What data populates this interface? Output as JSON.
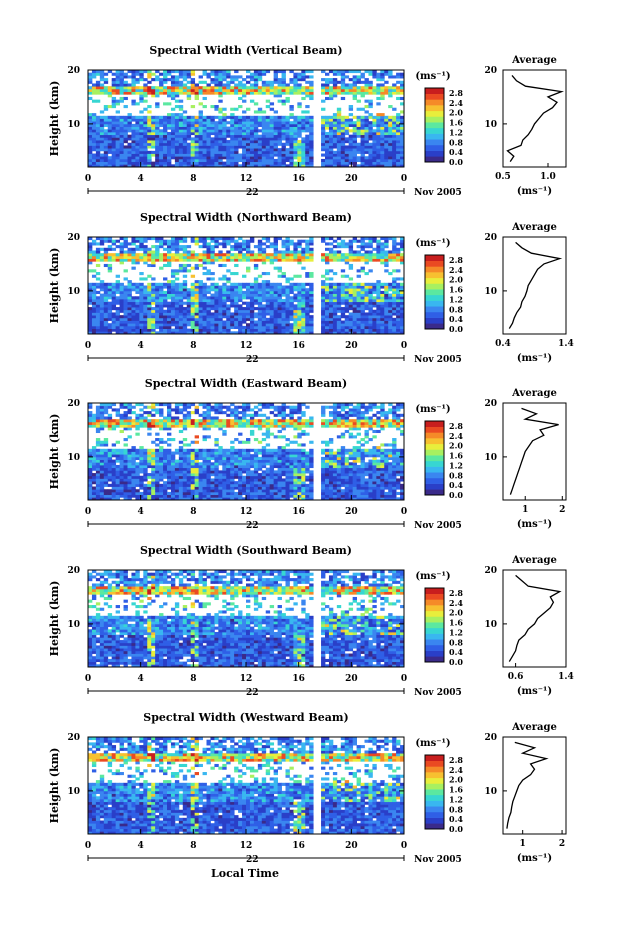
{
  "colors": {
    "scale": [
      "#3a2a8a",
      "#2a3fc8",
      "#2f5fe6",
      "#3a86f0",
      "#39b7f0",
      "#37d6d2",
      "#5be8a0",
      "#a8f060",
      "#e8ee3c",
      "#f7c030",
      "#f58a28",
      "#ea4a22",
      "#c81e1e"
    ],
    "background": "#ffffff",
    "axis": "#000000"
  },
  "shared": {
    "unit_label": "(ms⁻¹)",
    "avg_unit_label": "(ms⁻¹)",
    "y_label": "Height (km)",
    "date_label": "22",
    "month_label": "Nov 2005",
    "x_label": "Local Time",
    "avg_title": "Average",
    "colorbar_ticks": [
      "2.8",
      "2.4",
      "2.0",
      "1.6",
      "1.2",
      "0.8",
      "0.4",
      "0.0"
    ],
    "x_ticks": [
      "0",
      "4",
      "8",
      "12",
      "16",
      "20",
      "0"
    ],
    "y_ticks": [
      "20",
      "10"
    ],
    "avg_y_ticks": [
      "20",
      "10"
    ]
  },
  "chart_data": [
    {
      "type": "heatmap",
      "title": "Spectral Width (Vertical Beam)",
      "x_range_hours": [
        0,
        24
      ],
      "y_range_km": [
        2,
        20
      ],
      "colorbar_range": [
        0.0,
        3.0
      ],
      "data_gap_hours": [
        17.1,
        17.8
      ],
      "average_profile": {
        "xlim": [
          0.5,
          1.2
        ],
        "x_ticks": [
          "0.5",
          "1.0"
        ],
        "height_km": [
          3,
          4,
          5,
          6,
          7,
          8,
          9,
          10,
          11,
          12,
          13,
          14,
          15,
          16,
          17,
          18,
          19
        ],
        "values": [
          0.58,
          0.62,
          0.55,
          0.7,
          0.72,
          0.78,
          0.82,
          0.85,
          0.9,
          0.95,
          1.05,
          1.1,
          1.0,
          1.15,
          0.75,
          0.65,
          0.6
        ]
      }
    },
    {
      "type": "heatmap",
      "title": "Spectral Width (Northward Beam)",
      "x_range_hours": [
        0,
        24
      ],
      "y_range_km": [
        2,
        20
      ],
      "colorbar_range": [
        0.0,
        3.0
      ],
      "data_gap_hours": [
        17.0,
        17.6
      ],
      "average_profile": {
        "xlim": [
          0.4,
          1.4
        ],
        "x_ticks": [
          "0.4",
          "1.4"
        ],
        "height_km": [
          3,
          4,
          5,
          6,
          7,
          8,
          9,
          10,
          11,
          12,
          13,
          14,
          15,
          16,
          17,
          18,
          19
        ],
        "values": [
          0.5,
          0.55,
          0.58,
          0.62,
          0.68,
          0.7,
          0.75,
          0.78,
          0.8,
          0.85,
          0.9,
          0.95,
          1.05,
          1.3,
          0.85,
          0.7,
          0.6
        ]
      }
    },
    {
      "type": "heatmap",
      "title": "Spectral Width (Eastward Beam)",
      "x_range_hours": [
        0,
        24
      ],
      "y_range_km": [
        2,
        20
      ],
      "colorbar_range": [
        0.0,
        3.0
      ],
      "data_gap_hours": [
        17.0,
        17.6
      ],
      "average_profile": {
        "xlim": [
          0.4,
          2.1
        ],
        "x_ticks": [
          "1",
          "2"
        ],
        "height_km": [
          3,
          4,
          5,
          6,
          7,
          8,
          9,
          10,
          11,
          12,
          13,
          14,
          15,
          16,
          17,
          18,
          19
        ],
        "values": [
          0.6,
          0.65,
          0.7,
          0.75,
          0.8,
          0.85,
          0.9,
          0.95,
          1.0,
          1.1,
          1.2,
          1.5,
          1.4,
          1.9,
          1.0,
          1.3,
          0.9
        ]
      }
    },
    {
      "type": "heatmap",
      "title": "Spectral Width (Southward Beam)",
      "x_range_hours": [
        0,
        24
      ],
      "y_range_km": [
        2,
        20
      ],
      "colorbar_range": [
        0.0,
        3.0
      ],
      "data_gap_hours": [
        17.0,
        17.6
      ],
      "average_profile": {
        "xlim": [
          0.4,
          1.4
        ],
        "x_ticks": [
          "0.6",
          "1.4"
        ],
        "height_km": [
          3,
          4,
          5,
          6,
          7,
          8,
          9,
          10,
          11,
          12,
          13,
          14,
          15,
          16,
          17,
          18,
          19
        ],
        "values": [
          0.5,
          0.55,
          0.6,
          0.62,
          0.65,
          0.75,
          0.8,
          0.9,
          0.95,
          1.05,
          1.15,
          1.2,
          1.15,
          1.3,
          0.8,
          0.7,
          0.6
        ]
      }
    },
    {
      "type": "heatmap",
      "title": "Spectral Width (Westward Beam)",
      "x_range_hours": [
        0,
        24
      ],
      "y_range_km": [
        2,
        20
      ],
      "colorbar_range": [
        0.0,
        3.0
      ],
      "data_gap_hours": [
        17.0,
        17.6
      ],
      "average_profile": {
        "xlim": [
          0.5,
          2.1
        ],
        "x_ticks": [
          "1",
          "2"
        ],
        "height_km": [
          3,
          4,
          5,
          6,
          7,
          8,
          9,
          10,
          11,
          12,
          13,
          14,
          15,
          16,
          17,
          18,
          19
        ],
        "values": [
          0.6,
          0.62,
          0.65,
          0.7,
          0.72,
          0.75,
          0.8,
          0.85,
          0.9,
          1.0,
          1.2,
          1.3,
          1.2,
          1.6,
          1.0,
          1.3,
          0.8
        ]
      }
    }
  ]
}
